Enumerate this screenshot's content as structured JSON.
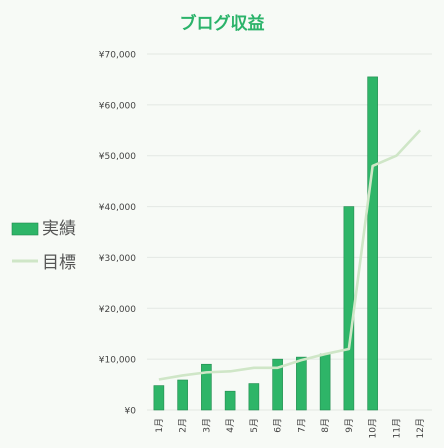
{
  "colors": {
    "background": "#f7faf6",
    "title": "#2bb36a",
    "bar": "#2eb568",
    "bar_edge": "#1f8a4d",
    "line": "#cfe6c7",
    "grid": "#e3e8e3",
    "text": "#444444",
    "legend_text": "#555555"
  },
  "chart_data": {
    "type": "bar",
    "title": "ブログ収益",
    "xlabel": "",
    "ylabel": "",
    "categories": [
      "1月",
      "2月",
      "3月",
      "4月",
      "5月",
      "6月",
      "7月",
      "8月",
      "9月",
      "10月",
      "11月",
      "12月"
    ],
    "ylim": [
      0,
      70000
    ],
    "yticks": [
      0,
      10000,
      20000,
      30000,
      40000,
      50000,
      60000,
      70000
    ],
    "ytick_labels": [
      "¥0",
      "¥10,000",
      "¥20,000",
      "¥30,000",
      "¥40,000",
      "¥50,000",
      "¥60,000",
      "¥70,000"
    ],
    "grid": true,
    "legend_position": "left",
    "series": [
      {
        "name": "実績",
        "type": "bar",
        "values": [
          4800,
          5900,
          9000,
          3700,
          5200,
          10000,
          10400,
          11000,
          40000,
          65500,
          null,
          null
        ]
      },
      {
        "name": "目標",
        "type": "line",
        "values": [
          6000,
          6800,
          7400,
          7600,
          8300,
          8300,
          9800,
          11000,
          12000,
          48000,
          50000,
          55000
        ]
      }
    ]
  }
}
